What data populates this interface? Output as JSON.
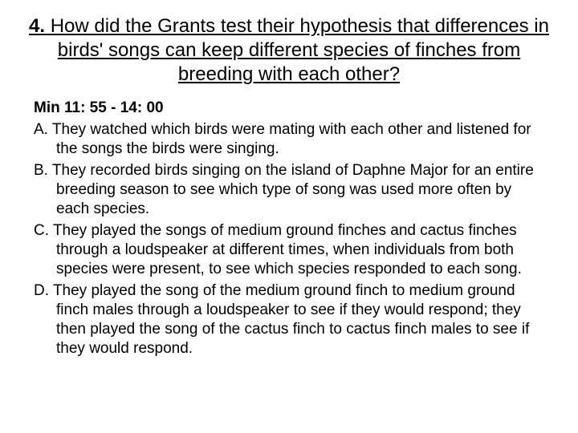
{
  "question": {
    "number": "4.",
    "text": "How did the Grants test their hypothesis that differences in birds' songs can keep different species of finches from breeding with each other?"
  },
  "timestamp": "Min 11: 55 - 14: 00",
  "options": [
    {
      "letter": "A.",
      "text": "They watched which birds were mating with each other and listened for the songs the birds were singing."
    },
    {
      "letter": "B.",
      "text": "They recorded birds singing on the island of Daphne Major for an entire breeding season to see which type of song was used more often by each species."
    },
    {
      "letter": "C.",
      "text": " They played the songs of medium ground finches and cactus finches through a loudspeaker at different times, when individuals from both species were present, to see which species responded to each song."
    },
    {
      "letter": "D.",
      "text": "They played the song of the medium ground finch to medium ground finch males through a loudspeaker to see if they would respond; they then played the song of the cactus finch to cactus finch males to see if they would respond."
    }
  ],
  "style": {
    "background": "#ffffff",
    "text_color": "#000000",
    "title_fontsize": 24,
    "body_fontsize": 19,
    "font_family": "Arial"
  }
}
